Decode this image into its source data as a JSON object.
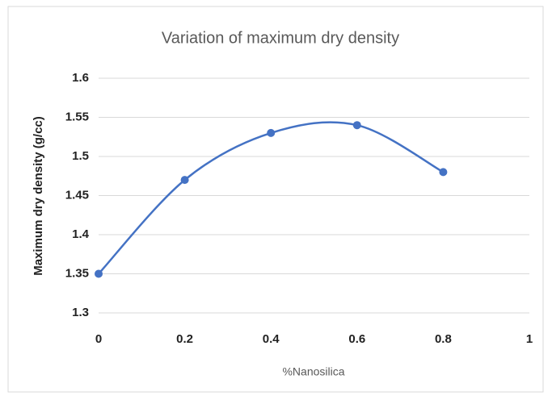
{
  "chart_data": {
    "type": "scatter",
    "title": "Variation of maximum dry density",
    "x_label": "%Nanosilica",
    "y_label": "Maximum dry density (g/cc)",
    "x": [
      0,
      0.2,
      0.4,
      0.6,
      0.8
    ],
    "series": [
      {
        "color": "#4472c4",
        "values": [
          1.35,
          1.47,
          1.53,
          1.54,
          1.48
        ]
      }
    ],
    "xlim": [
      0,
      1
    ],
    "xticks": [
      0,
      0.2,
      0.4,
      0.6,
      0.8,
      1
    ],
    "ylim": [
      1.3,
      1.6
    ],
    "yticks": [
      1.3,
      1.35,
      1.4,
      1.45,
      1.5,
      1.55,
      1.6
    ],
    "grid": true,
    "smooth": true
  }
}
